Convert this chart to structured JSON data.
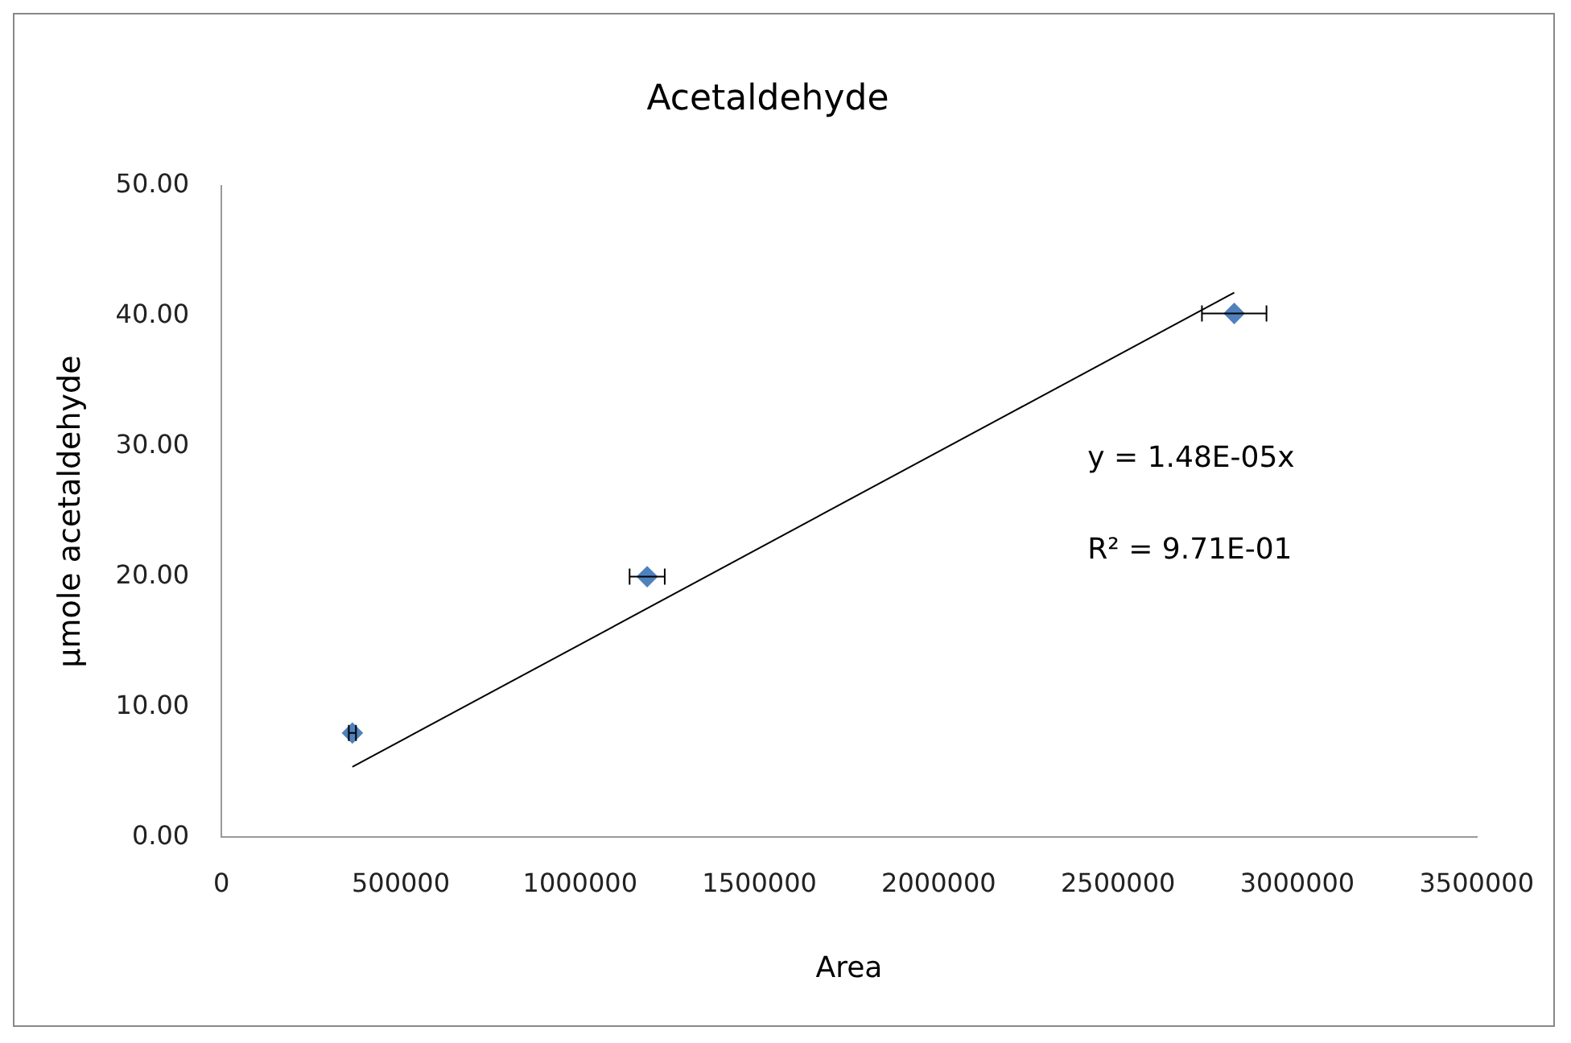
{
  "chart_data": {
    "type": "scatter",
    "title": "Acetaldehyde",
    "xlabel": "Area",
    "ylabel": "μmole acetaldehyde",
    "series": [
      {
        "type": "scatter",
        "color": "#4f81bd",
        "x": [
          365000,
          1187000,
          2824000
        ],
        "values": [
          8.0,
          20.0,
          40.2
        ],
        "xerrors": [
          10000,
          49000,
          90000
        ],
        "marker": "diamond"
      },
      {
        "type": "line",
        "color": "#000000",
        "x": [
          365000,
          2824000
        ],
        "values": [
          5.4,
          41.8
        ],
        "marker": "none"
      }
    ],
    "xlim": [
      0,
      3500000
    ],
    "xticks": [
      0,
      500000,
      1000000,
      1500000,
      2000000,
      2500000,
      3000000,
      3500000
    ],
    "ylim": [
      0,
      50
    ],
    "yticks": [
      {
        "value": 0,
        "label": "0.00"
      },
      {
        "value": 10,
        "label": "10.00"
      },
      {
        "value": 20,
        "label": "20.00"
      },
      {
        "value": 30,
        "label": "30.00"
      },
      {
        "value": 40,
        "label": "40.00"
      },
      {
        "value": 50,
        "label": "50.00"
      }
    ],
    "annotations": [
      "y = 1.48E-05x",
      "R² = 9.71E-01"
    ],
    "grid": false,
    "legend": false
  }
}
